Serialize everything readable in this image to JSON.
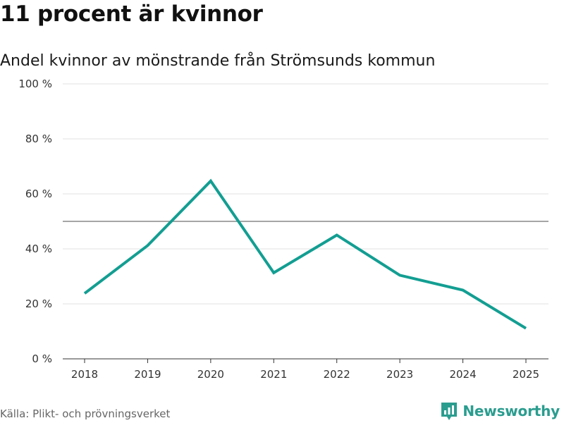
{
  "header": {
    "title": "11 procent är kvinnor",
    "subtitle": "Andel kvinnor av mönstrande från Strömsunds kommun"
  },
  "footer": {
    "source": "Källa: Plikt- och prövningsverket",
    "brand": "Newsworthy"
  },
  "colors": {
    "line": "#139e92",
    "reference": "#888888",
    "grid": "#e0e0e0",
    "brand": "#2a9d8f"
  },
  "chart_data": {
    "type": "line",
    "title": "11 procent är kvinnor",
    "subtitle": "Andel kvinnor av mönstrande från Strömsunds kommun",
    "xlabel": "",
    "ylabel": "",
    "categories": [
      "2018",
      "2019",
      "2020",
      "2021",
      "2022",
      "2023",
      "2024",
      "2025"
    ],
    "series": [
      {
        "name": "Andel kvinnor",
        "values": [
          23.8,
          41.2,
          64.7,
          31.3,
          45.0,
          30.4,
          25.0,
          11.1
        ]
      }
    ],
    "reference_line": 50,
    "ylim": [
      0,
      100
    ],
    "yticks": [
      0,
      20,
      40,
      60,
      80,
      100
    ],
    "ytick_labels": [
      "0 %",
      "20 %",
      "40 %",
      "60 %",
      "80 %",
      "100 %"
    ],
    "grid": true
  }
}
